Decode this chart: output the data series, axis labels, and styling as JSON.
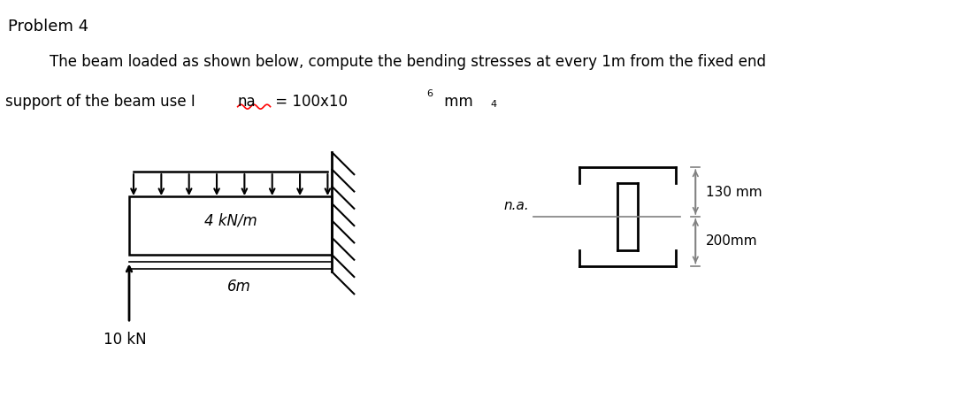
{
  "title": "Problem 4",
  "problem_text_line1": "The beam loaded as shown below, compute the bending stresses at every 1m from the fixed end",
  "problem_text_line2_part1": "support of the beam use I ",
  "problem_text_na": "na",
  "problem_text_line2_part2": " = 100x10",
  "problem_text_sup1": "6",
  "problem_text_line2_part3": " mm",
  "problem_text_sup2": "4",
  "beam_label": "4 kN/m",
  "span_label": "6m",
  "force_label": "10 kN",
  "dim1": "130 mm",
  "dim2": "200mm",
  "na_label": "n.a.",
  "bg_color": "#ffffff",
  "text_color": "#000000",
  "line_color": "#000000",
  "dim_line_color": "#808080",
  "wave_color": "#ff0000"
}
